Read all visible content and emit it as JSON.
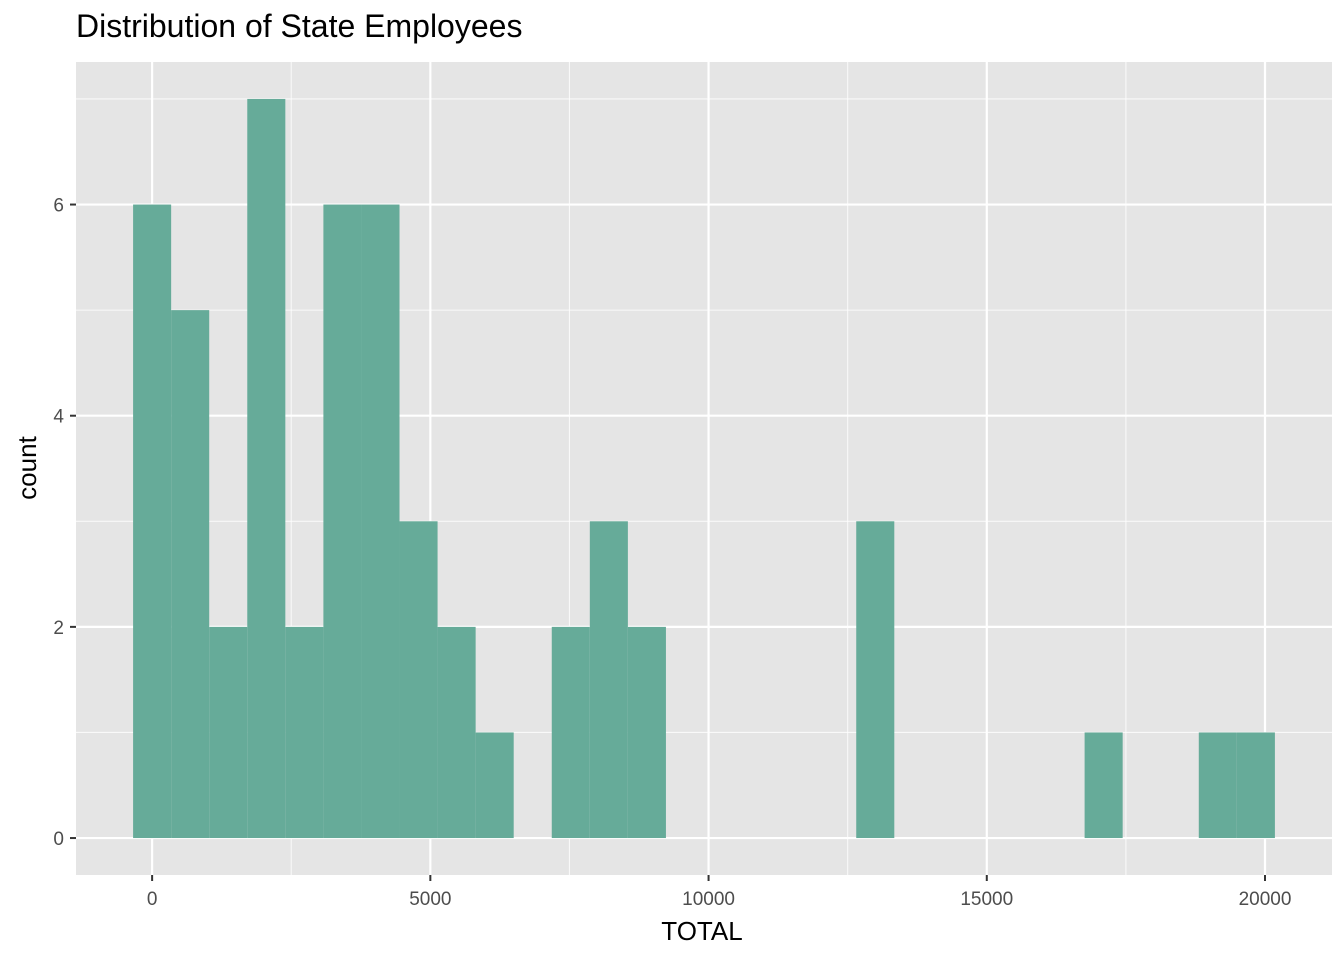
{
  "chart_data": {
    "type": "bar",
    "title": "Distribution of State Employees",
    "xlabel": "TOTAL",
    "ylabel": "count",
    "bin_width": 684,
    "bins": [
      {
        "x_start": -342,
        "x_end": 342,
        "count": 6
      },
      {
        "x_start": 342,
        "x_end": 1026,
        "count": 5
      },
      {
        "x_start": 1026,
        "x_end": 1710,
        "count": 2
      },
      {
        "x_start": 1710,
        "x_end": 2394,
        "count": 7
      },
      {
        "x_start": 2394,
        "x_end": 3078,
        "count": 2
      },
      {
        "x_start": 3078,
        "x_end": 3762,
        "count": 6
      },
      {
        "x_start": 3762,
        "x_end": 4446,
        "count": 6
      },
      {
        "x_start": 4446,
        "x_end": 5130,
        "count": 3
      },
      {
        "x_start": 5130,
        "x_end": 5814,
        "count": 2
      },
      {
        "x_start": 5814,
        "x_end": 6498,
        "count": 1
      },
      {
        "x_start": 7182,
        "x_end": 7866,
        "count": 2
      },
      {
        "x_start": 7866,
        "x_end": 8550,
        "count": 3
      },
      {
        "x_start": 8550,
        "x_end": 9234,
        "count": 2
      },
      {
        "x_start": 12654,
        "x_end": 13338,
        "count": 3
      },
      {
        "x_start": 16758,
        "x_end": 17442,
        "count": 1
      },
      {
        "x_start": 18810,
        "x_end": 19494,
        "count": 1
      },
      {
        "x_start": 19494,
        "x_end": 20178,
        "count": 1
      }
    ],
    "xlim": [
      -1368,
      21204
    ],
    "ylim": [
      -0.35,
      7.35
    ],
    "x_ticks": [
      0,
      5000,
      10000,
      15000,
      20000
    ],
    "x_tick_labels": [
      "0",
      "5000",
      "10000",
      "15000",
      "20000"
    ],
    "y_ticks": [
      0,
      2,
      4,
      6
    ],
    "y_tick_labels": [
      "0",
      "2",
      "4",
      "6"
    ],
    "grid": true,
    "colors": {
      "bar_fill": "#66ab99",
      "panel_background": "#e5e5e5",
      "grid_major": "#ffffff",
      "tick_text": "#4d4d4d"
    }
  }
}
